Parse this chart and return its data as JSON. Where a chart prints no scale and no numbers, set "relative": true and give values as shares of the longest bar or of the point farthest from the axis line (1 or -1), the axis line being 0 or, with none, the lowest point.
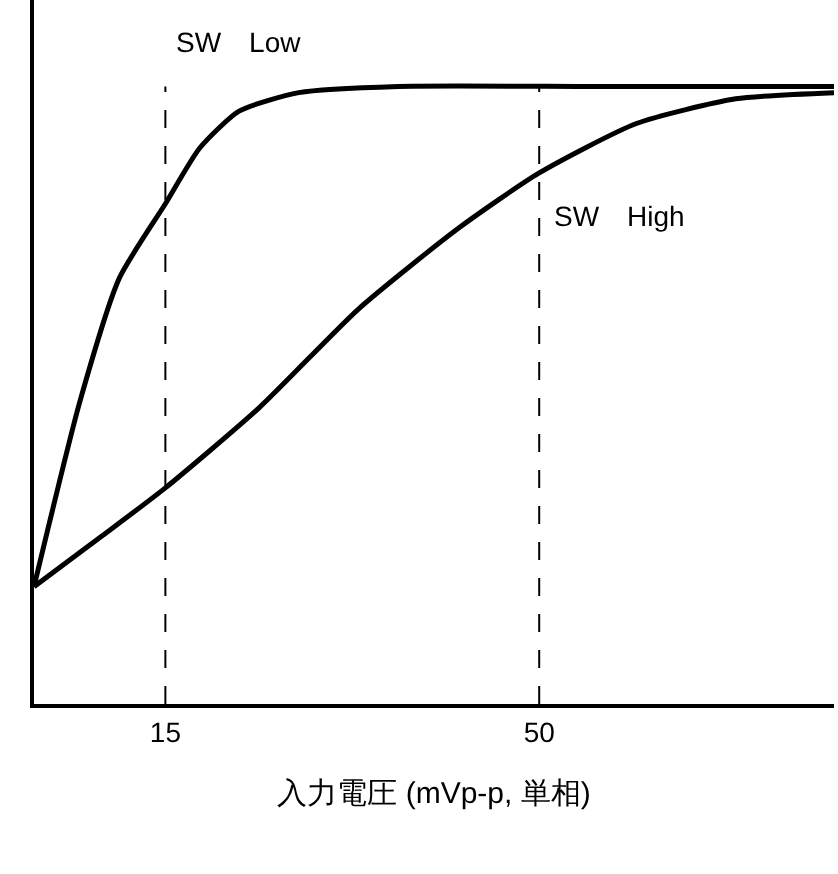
{
  "chart_data": {
    "type": "line",
    "relative": true,
    "xlabel": "入力電圧 (mVp-p, 単相)",
    "xlim": [
      2.7,
      77.6
    ],
    "xticks": [
      15,
      50
    ],
    "legend": false,
    "marker": "none",
    "line_style": "solid",
    "series": [
      {
        "name": "SW　Low",
        "color": "#000000",
        "x": [
          2.7,
          7.0,
          10.7,
          15,
          18.2,
          21.9,
          27.5,
          36.8,
          55.4,
          77.6
        ],
        "values": [
          0.19,
          0.49,
          0.69,
          0.81,
          0.9,
          0.96,
          0.99,
          1.0,
          1.0,
          1.0
        ]
      },
      {
        "name": "SW　High",
        "color": "#000000",
        "x": [
          2.7,
          8.9,
          15,
          23.8,
          33.1,
          42.4,
          50,
          59.1,
          68.4,
          77.6
        ],
        "values": [
          0.19,
          0.27,
          0.35,
          0.48,
          0.64,
          0.77,
          0.86,
          0.94,
          0.98,
          0.99
        ]
      }
    ],
    "ref_lines": [
      {
        "axis": "x",
        "value": 15,
        "color": "#000000",
        "line_style": "dashed"
      },
      {
        "axis": "x",
        "value": 50,
        "color": "#000000",
        "line_style": "dashed"
      }
    ]
  }
}
